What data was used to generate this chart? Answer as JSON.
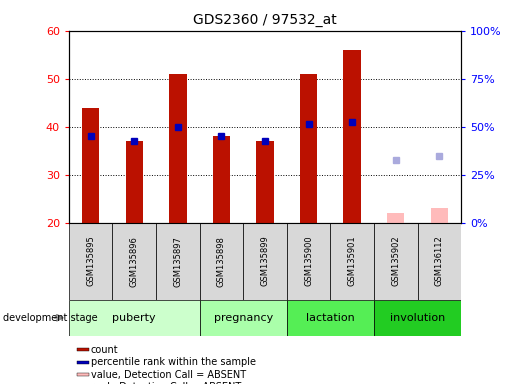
{
  "title": "GDS2360 / 97532_at",
  "samples": [
    "GSM135895",
    "GSM135896",
    "GSM135897",
    "GSM135898",
    "GSM135899",
    "GSM135900",
    "GSM135901",
    "GSM135902",
    "GSM136112"
  ],
  "red_values": [
    44,
    37,
    51,
    38,
    37,
    51,
    56,
    null,
    null
  ],
  "blue_values": [
    38,
    37,
    40,
    38,
    37,
    40.5,
    41,
    null,
    null
  ],
  "pink_values": [
    null,
    null,
    null,
    null,
    null,
    null,
    null,
    22,
    23
  ],
  "lightblue_values": [
    null,
    null,
    null,
    null,
    null,
    null,
    null,
    33,
    34
  ],
  "ymin": 20,
  "ymax": 60,
  "yticks_left": [
    20,
    30,
    40,
    50,
    60
  ],
  "yticks_right_pos": [
    20,
    30,
    40,
    50,
    60
  ],
  "yticks_right_labels": [
    "0%",
    "25%",
    "50%",
    "75%",
    "100%"
  ],
  "grid_lines": [
    30,
    40,
    50
  ],
  "stage_groups": [
    {
      "label": "puberty",
      "start": 0,
      "end": 3,
      "color": "#ccffcc"
    },
    {
      "label": "pregnancy",
      "start": 3,
      "end": 5,
      "color": "#aaffaa"
    },
    {
      "label": "lactation",
      "start": 5,
      "end": 7,
      "color": "#55ee55"
    },
    {
      "label": "involution",
      "start": 7,
      "end": 9,
      "color": "#22cc22"
    }
  ],
  "bar_width": 0.4,
  "red_color": "#bb1100",
  "blue_color": "#0000bb",
  "pink_color": "#ffbbbb",
  "lightblue_color": "#aaaadd",
  "axis_bg": "#d8d8d8",
  "figsize": [
    5.3,
    3.84
  ],
  "dpi": 100,
  "legend_items": [
    {
      "label": "count",
      "color": "#bb1100"
    },
    {
      "label": "percentile rank within the sample",
      "color": "#0000bb"
    },
    {
      "label": "value, Detection Call = ABSENT",
      "color": "#ffbbbb"
    },
    {
      "label": "rank, Detection Call = ABSENT",
      "color": "#aaaadd"
    }
  ],
  "dev_stage_label": "development stage"
}
